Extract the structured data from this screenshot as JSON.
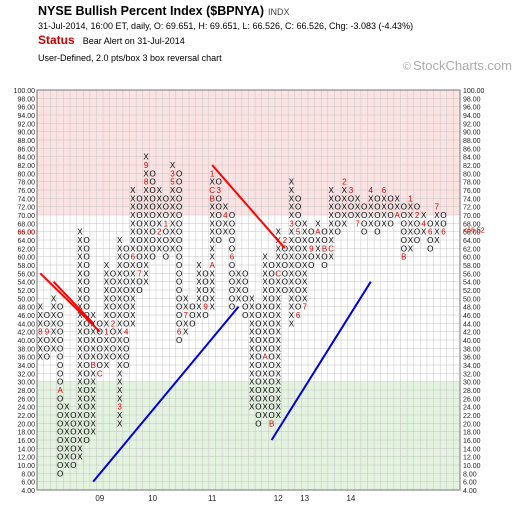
{
  "header": {
    "title": "NYSE Bullish Percent Index ($BPNYA)",
    "exchange": "INDX",
    "quote": "31-Jul-2014, 16:00 ET, daily, O: 69.651, H: 69.651, L: 66.526, C: 66.526, Chg: -3.083 (-4.43%)",
    "status_label": "Status",
    "status_value": "Bear Alert on 31-Jul-2014",
    "description": "User-Defined, 2.0 pts/box 3 box reversal chart",
    "credit": "StockCharts.com",
    "credit_symbol": "©"
  },
  "colors": {
    "overbought_zone": "#fbe3e3",
    "oversold_zone": "#e3f3df",
    "grid": "#c4c4c4",
    "resistance_line": "#ff0000",
    "support_line": "#0000dd",
    "month_marker": "#cc0000",
    "price_marker": "#cc0000"
  },
  "chart_data": {
    "type": "point-and-figure",
    "box_size": 2,
    "reversal": 3,
    "ylim": [
      4,
      100
    ],
    "y_ticks": [
      "100.00",
      "98.00",
      "96.00",
      "94.00",
      "92.00",
      "90.00",
      "88.00",
      "86.00",
      "84.00",
      "82.00",
      "80.00",
      "78.00",
      "76.00",
      "74.00",
      "72.00",
      "70.00",
      "68.00",
      "66.00",
      "64.00",
      "62.00",
      "60.00",
      "58.00",
      "56.00",
      "54.00",
      "52.00",
      "50.00",
      "48.00",
      "46.00",
      "44.00",
      "42.00",
      "40.00",
      "38.00",
      "36.00",
      "34.00",
      "32.00",
      "30.00",
      "28.00",
      "26.00",
      "24.00",
      "22.00",
      "20.00",
      "18.00",
      "16.00",
      "14.00",
      "12.00",
      "10.00",
      "8.00",
      "6.00",
      "4.00"
    ],
    "zones": [
      {
        "name": "overbought",
        "from": 70,
        "to": 100
      },
      {
        "name": "oversold",
        "from": 4,
        "to": 30
      }
    ],
    "year_labels": [
      {
        "label": "09",
        "column": 9
      },
      {
        "label": "10",
        "column": 17
      },
      {
        "label": "11",
        "column": 26
      },
      {
        "label": "12",
        "column": 36
      },
      {
        "label": "13",
        "column": 40
      },
      {
        "label": "14",
        "column": 47
      }
    ],
    "columns": [
      {
        "type": "X",
        "low": 36,
        "high": 48,
        "marks": [
          {
            "at": 42,
            "label": "8"
          }
        ]
      },
      {
        "type": "O",
        "low": 36,
        "high": 46,
        "marks": [
          {
            "at": 42,
            "label": "9"
          }
        ]
      },
      {
        "type": "X",
        "low": 38,
        "high": 50,
        "marks": []
      },
      {
        "type": "O",
        "low": 8,
        "high": 48,
        "marks": [
          {
            "at": 28,
            "label": "A"
          }
        ]
      },
      {
        "type": "X",
        "low": 10,
        "high": 24,
        "marks": []
      },
      {
        "type": "O",
        "low": 10,
        "high": 22,
        "marks": []
      },
      {
        "type": "X",
        "low": 12,
        "high": 66,
        "marks": []
      },
      {
        "type": "O",
        "low": 16,
        "high": 64,
        "marks": []
      },
      {
        "type": "X",
        "low": 18,
        "high": 46,
        "marks": [
          {
            "at": 34,
            "label": "B"
          }
        ]
      },
      {
        "type": "O",
        "low": 32,
        "high": 44,
        "marks": [
          {
            "at": 32,
            "label": "C"
          }
        ]
      },
      {
        "type": "X",
        "low": 34,
        "high": 58,
        "marks": [
          {
            "at": 42,
            "label": "1"
          }
        ]
      },
      {
        "type": "O",
        "low": 36,
        "high": 56,
        "marks": [
          {
            "at": 44,
            "label": "2"
          }
        ]
      },
      {
        "type": "X",
        "low": 20,
        "high": 64,
        "marks": [
          {
            "at": 24,
            "label": "3"
          }
        ]
      },
      {
        "type": "O",
        "low": 34,
        "high": 62,
        "marks": [
          {
            "at": 42,
            "label": "4"
          }
        ]
      },
      {
        "type": "X",
        "low": 44,
        "high": 76,
        "marks": [
          {
            "at": 60,
            "label": "6"
          }
        ]
      },
      {
        "type": "O",
        "low": 52,
        "high": 74,
        "marks": [
          {
            "at": 56,
            "label": "7"
          }
        ]
      },
      {
        "type": "X",
        "low": 54,
        "high": 84,
        "marks": [
          {
            "at": 78,
            "label": "8"
          },
          {
            "at": 82,
            "label": "9"
          }
        ]
      },
      {
        "type": "O",
        "low": 60,
        "high": 80,
        "marks": []
      },
      {
        "type": "X",
        "low": 62,
        "high": 76,
        "marks": [
          {
            "at": 66,
            "label": "2"
          }
        ]
      },
      {
        "type": "O",
        "low": 60,
        "high": 74,
        "marks": [
          {
            "at": 68,
            "label": "1"
          }
        ]
      },
      {
        "type": "X",
        "low": 62,
        "high": 82,
        "marks": [
          {
            "at": 78,
            "label": "5"
          },
          {
            "at": 80,
            "label": "3"
          }
        ]
      },
      {
        "type": "O",
        "low": 40,
        "high": 80,
        "marks": [
          {
            "at": 42,
            "label": "6"
          }
        ]
      },
      {
        "type": "X",
        "low": 42,
        "high": 50,
        "marks": [
          {
            "at": 46,
            "label": "7"
          }
        ]
      },
      {
        "type": "O",
        "low": 44,
        "high": 48,
        "marks": []
      },
      {
        "type": "X",
        "low": 46,
        "high": 58,
        "marks": []
      },
      {
        "type": "O",
        "low": 46,
        "high": 56,
        "marks": [
          {
            "at": 48,
            "label": "9"
          }
        ]
      },
      {
        "type": "X",
        "low": 48,
        "high": 80,
        "marks": [
          {
            "at": 58,
            "label": "A"
          },
          {
            "at": 74,
            "label": "B"
          },
          {
            "at": 76,
            "label": "C"
          },
          {
            "at": 80,
            "label": "1"
          }
        ]
      },
      {
        "type": "O",
        "low": 64,
        "high": 78,
        "marks": [
          {
            "at": 76,
            "label": "3"
          }
        ]
      },
      {
        "type": "X",
        "low": 66,
        "high": 72,
        "marks": [
          {
            "at": 70,
            "label": "4"
          }
        ]
      },
      {
        "type": "O",
        "low": 48,
        "high": 70,
        "marks": [
          {
            "at": 72,
            "label": "5"
          },
          {
            "at": 60,
            "label": "6"
          }
        ]
      },
      {
        "type": "X",
        "low": 50,
        "high": 56,
        "marks": []
      },
      {
        "type": "O",
        "low": 46,
        "high": 56,
        "marks": [
          {
            "at": 58,
            "label": "8"
          }
        ]
      },
      {
        "type": "X",
        "low": 24,
        "high": 50,
        "marks": []
      },
      {
        "type": "O",
        "low": 20,
        "high": 48,
        "marks": []
      },
      {
        "type": "X",
        "low": 22,
        "high": 60,
        "marks": [
          {
            "at": 36,
            "label": "A"
          }
        ]
      },
      {
        "type": "O",
        "low": 20,
        "high": 58,
        "marks": [
          {
            "at": 20,
            "label": "B"
          }
        ]
      },
      {
        "type": "X",
        "low": 22,
        "high": 66,
        "marks": [
          {
            "at": 56,
            "label": "C"
          }
        ]
      },
      {
        "type": "O",
        "low": 52,
        "high": 64,
        "marks": [
          {
            "at": 64,
            "label": "2"
          }
        ]
      },
      {
        "type": "X",
        "low": 44,
        "high": 78,
        "marks": [
          {
            "at": 68,
            "label": "3"
          }
        ]
      },
      {
        "type": "O",
        "low": 46,
        "high": 74,
        "marks": [
          {
            "at": 76,
            "label": "4"
          },
          {
            "at": 66,
            "label": "5"
          },
          {
            "at": 46,
            "label": "6"
          }
        ]
      },
      {
        "type": "X",
        "low": 48,
        "high": 68,
        "marks": [
          {
            "at": 48,
            "label": "7"
          }
        ]
      },
      {
        "type": "O",
        "low": 58,
        "high": 66,
        "marks": [
          {
            "at": 62,
            "label": "9"
          }
        ]
      },
      {
        "type": "X",
        "low": 60,
        "high": 68,
        "marks": [
          {
            "at": 66,
            "label": "A"
          }
        ]
      },
      {
        "type": "O",
        "low": 58,
        "high": 66,
        "marks": [
          {
            "at": 62,
            "label": "B"
          }
        ]
      },
      {
        "type": "X",
        "low": 60,
        "high": 76,
        "marks": [
          {
            "at": 62,
            "label": "C"
          }
        ]
      },
      {
        "type": "O",
        "low": 66,
        "high": 74,
        "marks": []
      },
      {
        "type": "X",
        "low": 68,
        "high": 78,
        "marks": [
          {
            "at": 78,
            "label": "2"
          }
        ]
      },
      {
        "type": "O",
        "low": 70,
        "high": 76,
        "marks": [
          {
            "at": 76,
            "label": "3"
          }
        ]
      },
      {
        "type": "X",
        "low": 68,
        "high": 74,
        "marks": [
          {
            "at": 68,
            "label": "7"
          }
        ]
      },
      {
        "type": "O",
        "low": 66,
        "high": 72,
        "marks": []
      },
      {
        "type": "X",
        "low": 68,
        "high": 76,
        "marks": [
          {
            "at": 76,
            "label": "4"
          }
        ]
      },
      {
        "type": "O",
        "low": 66,
        "high": 74,
        "marks": []
      },
      {
        "type": "X",
        "low": 68,
        "high": 76,
        "marks": [
          {
            "at": 76,
            "label": "6"
          }
        ]
      },
      {
        "type": "O",
        "low": 68,
        "high": 74,
        "marks": []
      },
      {
        "type": "X",
        "low": 70,
        "high": 74,
        "marks": [
          {
            "at": 70,
            "label": "A"
          }
        ]
      },
      {
        "type": "O",
        "low": 60,
        "high": 72,
        "marks": [
          {
            "at": 60,
            "label": "B"
          }
        ]
      },
      {
        "type": "X",
        "low": 62,
        "high": 74,
        "marks": [
          {
            "at": 74,
            "label": "1"
          }
        ]
      },
      {
        "type": "O",
        "low": 64,
        "high": 72,
        "marks": [
          {
            "at": 70,
            "label": "2"
          }
        ]
      },
      {
        "type": "X",
        "low": 66,
        "high": 70,
        "marks": [
          {
            "at": 68,
            "label": "4"
          }
        ]
      },
      {
        "type": "O",
        "low": 62,
        "high": 68,
        "marks": [
          {
            "at": 66,
            "label": "6"
          }
        ]
      },
      {
        "type": "X",
        "low": 64,
        "high": 72,
        "marks": [
          {
            "at": 72,
            "label": "7"
          }
        ]
      },
      {
        "type": "O",
        "low": 66,
        "high": 70,
        "marks": [
          {
            "at": 66,
            "label": "6"
          }
        ]
      }
    ],
    "trendlines": [
      {
        "kind": "resistance",
        "points": [
          [
            0,
            56
          ],
          [
            9,
            42
          ]
        ]
      },
      {
        "kind": "resistance",
        "points": [
          [
            2,
            54
          ],
          [
            8,
            44
          ]
        ]
      },
      {
        "kind": "resistance",
        "points": [
          [
            26,
            82
          ],
          [
            37,
            62
          ]
        ]
      },
      {
        "kind": "support",
        "points": [
          [
            8,
            6
          ],
          [
            30,
            48
          ]
        ]
      },
      {
        "kind": "support",
        "points": [
          [
            35,
            16
          ],
          [
            50,
            54
          ]
        ]
      }
    ],
    "price_labels": [
      {
        "value": 66,
        "label": "66.00",
        "side": "left"
      },
      {
        "value": 66.52,
        "label": "66.52",
        "side": "right"
      }
    ]
  }
}
